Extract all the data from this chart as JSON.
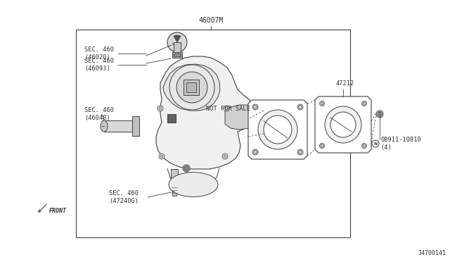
{
  "bg_color": "#ffffff",
  "fig_width": 6.4,
  "fig_height": 3.72,
  "dpi": 100,
  "title_text": "46007M",
  "label_46020": "SEC. 460\n(46020)",
  "label_46093": "SEC. 460\n(46093)",
  "label_46048": "SEC. 460\n(46048)",
  "label_47240": "SEC. 460\n(47240G)",
  "label_47212": "47212",
  "label_bolt": "08911-10810\n(4)",
  "label_nfs": "NOT FOR SALE",
  "label_front": "FRONT",
  "label_j47": "J4700141",
  "lc": "#404040",
  "tc": "#303030"
}
